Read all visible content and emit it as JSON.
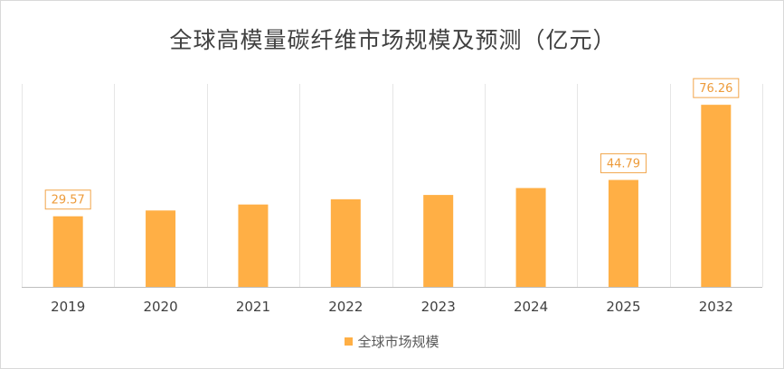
{
  "chart_data": {
    "type": "bar",
    "title": "全球高模量碳纤维市场规模及预测（亿元）",
    "categories": [
      "2019",
      "2020",
      "2021",
      "2022",
      "2023",
      "2024",
      "2025",
      "2032"
    ],
    "series": [
      {
        "name": "全球市场规模",
        "values": [
          29.57,
          32.0,
          34.5,
          36.7,
          38.5,
          41.4,
          44.79,
          76.26
        ],
        "data_labels": [
          "29.57",
          "",
          "",
          "",
          "",
          "",
          "44.79",
          "76.26"
        ]
      }
    ],
    "ylim": [
      0,
      85
    ],
    "grid": "vertical",
    "legend_position": "bottom",
    "colors": {
      "bar": "#FFAF45",
      "label_text": "#ED9B3A",
      "label_border": "#F2A54A",
      "grid": "#e6e6e6",
      "axis": "#bfbfbf",
      "tick_text": "#404040"
    }
  }
}
